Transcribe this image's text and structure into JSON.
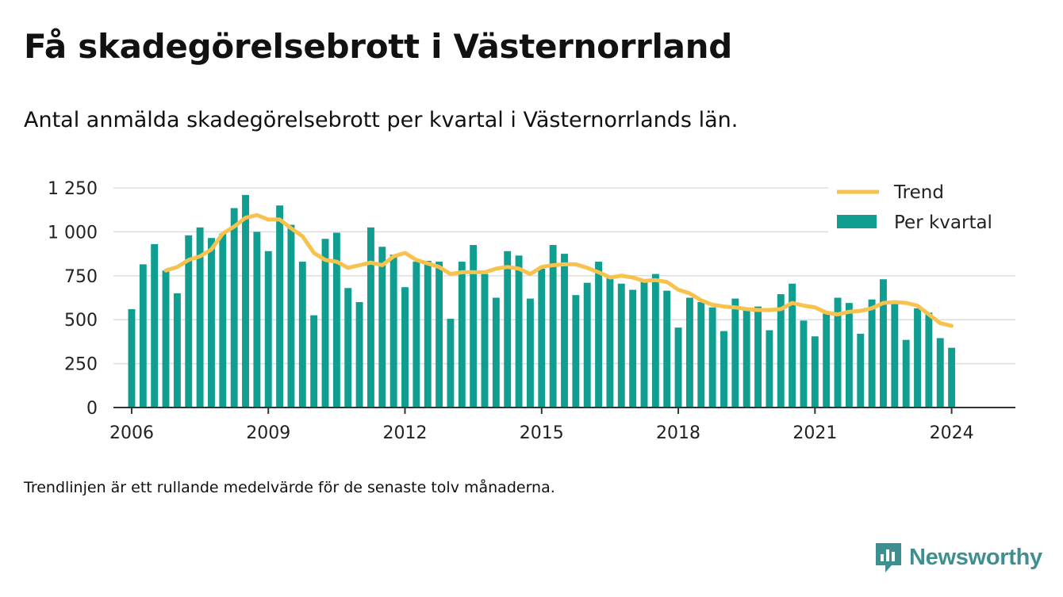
{
  "title": "Få skadegörelsebrott i Västernorrland",
  "subtitle": "Antal anmälda skadegörelsebrott per kvartal i Västernorrlands län.",
  "note": "Trendlinjen är ett rullande medelvärde för de senaste tolv månaderna.",
  "brand": {
    "name": "Newsworthy",
    "icon": "newsworthy-logo-icon"
  },
  "colors": {
    "bars": "#109e91",
    "trend": "#f7c24e",
    "grid": "#dddddd",
    "axis": "#333333"
  },
  "chart_data": {
    "type": "bar",
    "xlim": [
      2005.6,
      2025.4
    ],
    "ylim": [
      0,
      1250
    ],
    "y_ticks": [
      0,
      250,
      500,
      750,
      1000,
      1250
    ],
    "y_tick_labels": [
      "0",
      "250",
      "500",
      "750",
      "1 000",
      "1 250"
    ],
    "x_ticks": [
      2006,
      2009,
      2012,
      2015,
      2018,
      2021,
      2024
    ],
    "x_tick_labels": [
      "2006",
      "2009",
      "2012",
      "2015",
      "2018",
      "2021",
      "2024"
    ],
    "grid": true,
    "legend_position": "top-right",
    "series": [
      {
        "name": "Per kvartal",
        "type": "bar",
        "x_start": 2006.0,
        "x_step": 0.25,
        "values": [
          560,
          815,
          930,
          780,
          650,
          980,
          1025,
          965,
          990,
          1135,
          1210,
          1000,
          890,
          1150,
          1040,
          830,
          525,
          960,
          995,
          680,
          600,
          1025,
          915,
          870,
          685,
          830,
          835,
          830,
          505,
          830,
          925,
          760,
          625,
          890,
          865,
          620,
          790,
          925,
          875,
          640,
          710,
          830,
          740,
          705,
          670,
          720,
          760,
          665,
          455,
          625,
          600,
          570,
          435,
          620,
          565,
          575,
          440,
          645,
          705,
          495,
          405,
          535,
          625,
          595,
          420,
          615,
          730,
          590,
          385,
          565,
          540,
          395,
          340
        ]
      },
      {
        "name": "Trend",
        "type": "line",
        "x": [
          2006.75,
          2007.0,
          2007.25,
          2007.5,
          2007.75,
          2008.0,
          2008.25,
          2008.5,
          2008.75,
          2009.0,
          2009.25,
          2009.5,
          2009.75,
          2010.0,
          2010.25,
          2010.5,
          2010.75,
          2011.0,
          2011.25,
          2011.5,
          2011.75,
          2012.0,
          2012.25,
          2012.5,
          2012.75,
          2013.0,
          2013.25,
          2013.5,
          2013.75,
          2014.0,
          2014.25,
          2014.5,
          2014.75,
          2015.0,
          2015.25,
          2015.5,
          2015.75,
          2016.0,
          2016.25,
          2016.5,
          2016.75,
          2017.0,
          2017.25,
          2017.5,
          2017.75,
          2018.0,
          2018.25,
          2018.5,
          2018.75,
          2019.0,
          2019.25,
          2019.5,
          2019.75,
          2020.0,
          2020.25,
          2020.5,
          2020.75,
          2021.0,
          2021.25,
          2021.5,
          2021.75,
          2022.0,
          2022.25,
          2022.5,
          2022.75,
          2023.0,
          2023.25,
          2023.5,
          2023.75,
          2024.0
        ],
        "values": [
          780,
          800,
          840,
          860,
          900,
          990,
          1030,
          1080,
          1095,
          1070,
          1070,
          1020,
          975,
          880,
          840,
          830,
          795,
          810,
          825,
          810,
          860,
          880,
          840,
          820,
          800,
          760,
          770,
          770,
          770,
          790,
          800,
          790,
          760,
          800,
          810,
          815,
          815,
          795,
          770,
          740,
          750,
          740,
          720,
          725,
          715,
          670,
          650,
          610,
          585,
          575,
          570,
          560,
          555,
          555,
          560,
          595,
          580,
          570,
          540,
          530,
          545,
          550,
          565,
          595,
          600,
          595,
          580,
          530,
          480,
          465
        ]
      }
    ]
  }
}
